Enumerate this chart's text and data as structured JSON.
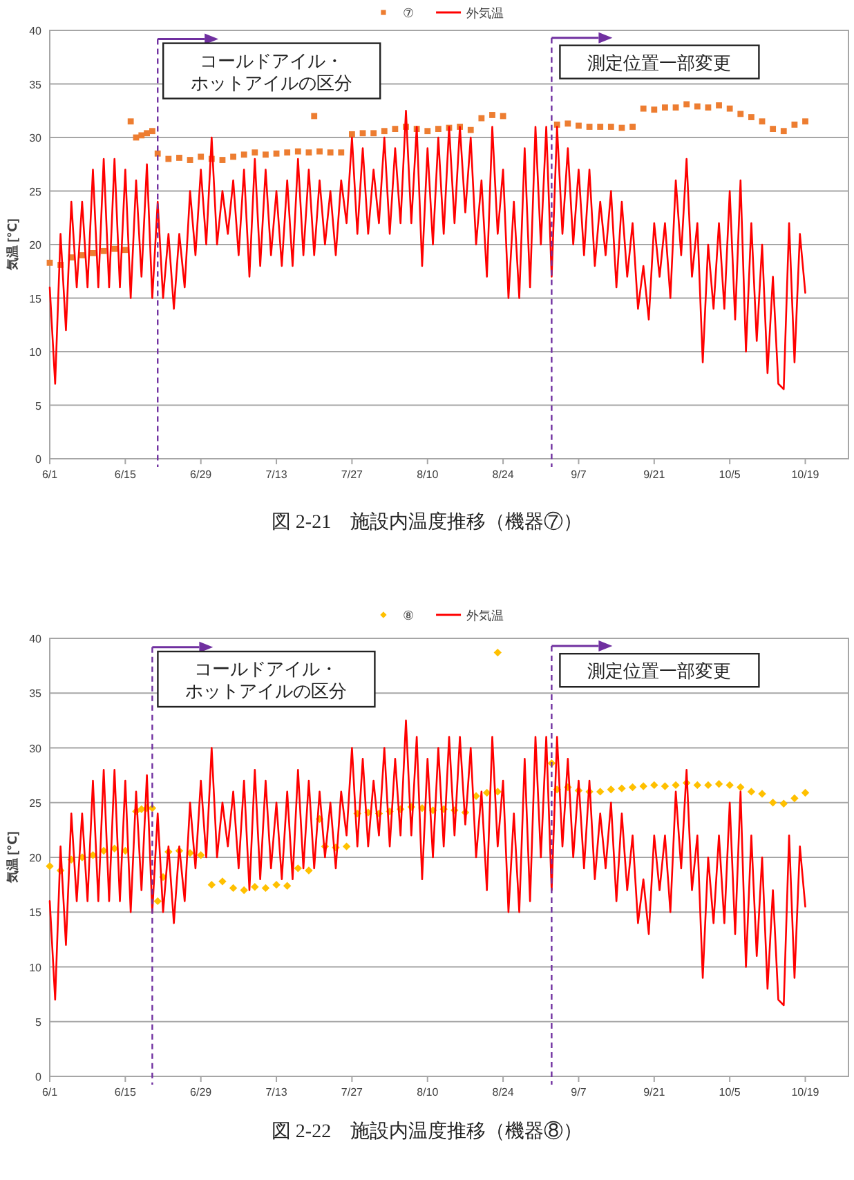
{
  "chart_data": [
    {
      "type": "line",
      "legend": "top",
      "grid": "y",
      "ylabel": "気温 [℃]",
      "xlim": [
        "--06-01",
        "--10-27"
      ],
      "ylim": [
        0,
        40
      ],
      "yticks": [
        0,
        5,
        10,
        15,
        20,
        25,
        30,
        35,
        40
      ],
      "xticks": [
        {
          "value": "--06-01",
          "label": "6/1"
        },
        {
          "value": "--06-15",
          "label": "6/15"
        },
        {
          "value": "--06-29",
          "label": "6/29"
        },
        {
          "value": "--07-13",
          "label": "7/13"
        },
        {
          "value": "--07-27",
          "label": "7/27"
        },
        {
          "value": "--08-10",
          "label": "8/10"
        },
        {
          "value": "--08-24",
          "label": "8/24"
        },
        {
          "value": "--09-07",
          "label": "9/7"
        },
        {
          "value": "--09-21",
          "label": "9/21"
        },
        {
          "value": "--10-05",
          "label": "10/5"
        },
        {
          "value": "--10-19",
          "label": "10/19"
        }
      ],
      "series": [
        {
          "name": "⑦",
          "type": "scatter",
          "marker": "square",
          "color": "#ed7d31",
          "x": [
            "--06-01",
            "--06-03",
            "--06-05",
            "--06-07",
            "--06-09",
            "--06-11",
            "--06-13",
            "--06-15",
            "--06-16",
            "--06-17",
            "--06-18",
            "--06-19",
            "--06-20",
            "--06-21",
            "--06-23",
            "--06-25",
            "--06-27",
            "--06-29",
            "--07-01",
            "--07-03",
            "--07-05",
            "--07-07",
            "--07-09",
            "--07-11",
            "--07-13",
            "--07-15",
            "--07-17",
            "--07-19",
            "--07-20",
            "--07-21",
            "--07-23",
            "--07-25",
            "--07-27",
            "--07-29",
            "--07-31",
            "--08-02",
            "--08-04",
            "--08-06",
            "--08-08",
            "--08-10",
            "--08-12",
            "--08-14",
            "--08-16",
            "--08-18",
            "--08-20",
            "--08-22",
            "--08-24",
            "--09-03",
            "--09-05",
            "--09-07",
            "--09-09",
            "--09-11",
            "--09-13",
            "--09-15",
            "--09-17",
            "--09-19",
            "--09-21",
            "--09-23",
            "--09-25",
            "--09-27",
            "--09-29",
            "--10-01",
            "--10-03",
            "--10-05",
            "--10-07",
            "--10-09",
            "--10-11",
            "--10-13",
            "--10-15",
            "--10-17",
            "--10-19"
          ],
          "values": [
            18.3,
            18.1,
            18.8,
            19.0,
            19.2,
            19.4,
            19.6,
            19.5,
            31.5,
            30.0,
            30.2,
            30.4,
            30.6,
            28.5,
            28.0,
            28.1,
            27.9,
            28.2,
            28.0,
            27.9,
            28.2,
            28.4,
            28.6,
            28.4,
            28.5,
            28.6,
            28.7,
            28.6,
            32.0,
            28.7,
            28.6,
            28.6,
            30.3,
            30.4,
            30.4,
            30.6,
            30.8,
            31.0,
            30.8,
            30.6,
            30.8,
            30.9,
            31.0,
            30.7,
            31.8,
            32.1,
            32.0,
            31.2,
            31.3,
            31.1,
            31.0,
            31.0,
            31.0,
            30.9,
            31.0,
            32.7,
            32.6,
            32.8,
            32.8,
            33.1,
            32.9,
            32.8,
            33.0,
            32.7,
            32.2,
            31.9,
            31.5,
            30.8,
            30.6,
            31.2,
            31.5
          ]
        },
        {
          "name": "外気温",
          "type": "line",
          "color": "#ff0000",
          "x": [
            "--06-01",
            "--06-02",
            "--06-03",
            "--06-04",
            "--06-05",
            "--06-06",
            "--06-07",
            "--06-08",
            "--06-09",
            "--06-10",
            "--06-11",
            "--06-12",
            "--06-13",
            "--06-14",
            "--06-15",
            "--06-16",
            "--06-17",
            "--06-18",
            "--06-19",
            "--06-20",
            "--06-21",
            "--06-22",
            "--06-23",
            "--06-24",
            "--06-25",
            "--06-26",
            "--06-27",
            "--06-28",
            "--06-29",
            "--06-30",
            "--07-01",
            "--07-02",
            "--07-03",
            "--07-04",
            "--07-05",
            "--07-06",
            "--07-07",
            "--07-08",
            "--07-09",
            "--07-10",
            "--07-11",
            "--07-12",
            "--07-13",
            "--07-14",
            "--07-15",
            "--07-16",
            "--07-17",
            "--07-18",
            "--07-19",
            "--07-20",
            "--07-21",
            "--07-22",
            "--07-23",
            "--07-24",
            "--07-25",
            "--07-26",
            "--07-27",
            "--07-28",
            "--07-29",
            "--07-30",
            "--07-31",
            "--08-01",
            "--08-02",
            "--08-03",
            "--08-04",
            "--08-05",
            "--08-06",
            "--08-07",
            "--08-08",
            "--08-09",
            "--08-10",
            "--08-11",
            "--08-12",
            "--08-13",
            "--08-14",
            "--08-15",
            "--08-16",
            "--08-17",
            "--08-18",
            "--08-19",
            "--08-20",
            "--08-21",
            "--08-22",
            "--08-23",
            "--08-24",
            "--08-25",
            "--08-26",
            "--08-27",
            "--08-28",
            "--08-29",
            "--08-30",
            "--08-31",
            "--09-01",
            "--09-02",
            "--09-03",
            "--09-04",
            "--09-05",
            "--09-06",
            "--09-07",
            "--09-08",
            "--09-09",
            "--09-10",
            "--09-11",
            "--09-12",
            "--09-13",
            "--09-14",
            "--09-15",
            "--09-16",
            "--09-17",
            "--09-18",
            "--09-19",
            "--09-20",
            "--09-21",
            "--09-22",
            "--09-23",
            "--09-24",
            "--09-25",
            "--09-26",
            "--09-27",
            "--09-28",
            "--09-29",
            "--09-30",
            "--10-01",
            "--10-02",
            "--10-03",
            "--10-04",
            "--10-05",
            "--10-06",
            "--10-07",
            "--10-08",
            "--10-09",
            "--10-10",
            "--10-11",
            "--10-12",
            "--10-13",
            "--10-14",
            "--10-15",
            "--10-16",
            "--10-17",
            "--10-18",
            "--10-19"
          ],
          "values": [
            16,
            7,
            21,
            12,
            24,
            16,
            24,
            16,
            27,
            16,
            28,
            16,
            28,
            16,
            27,
            15,
            26,
            17,
            27.5,
            15,
            24,
            15,
            21,
            14,
            21,
            16,
            25,
            19,
            27,
            20,
            30,
            20,
            25,
            21,
            26,
            19,
            27,
            17,
            28,
            18,
            27,
            19,
            25,
            18,
            26,
            18,
            28,
            19,
            27,
            19,
            26,
            20,
            25,
            19,
            26,
            22,
            30,
            21,
            29,
            21,
            27,
            22,
            30,
            21,
            29,
            22,
            32.5,
            22,
            31,
            18,
            29,
            20,
            30,
            21,
            31,
            22,
            31,
            23,
            30,
            20,
            26,
            17,
            31,
            21,
            27,
            15,
            24,
            15,
            29,
            16,
            31,
            20,
            31,
            17,
            31,
            21,
            29,
            20,
            27,
            19,
            27,
            18,
            24,
            19,
            25,
            16,
            24,
            17,
            22,
            14,
            18,
            13,
            22,
            17,
            22,
            15,
            26,
            19,
            28,
            17,
            22,
            9,
            20,
            14,
            22,
            14,
            25,
            13,
            26,
            10,
            22,
            11,
            20,
            8,
            17,
            7,
            6.5,
            22,
            9,
            21,
            15.5
          ]
        }
      ],
      "ref_lines": [
        {
          "axis": "x",
          "value": "--06-21",
          "label": "コールドアイル・ホットアイルの区分",
          "color": "#7030a0",
          "line_style": "dashed"
        },
        {
          "axis": "x",
          "value": "--09-02",
          "label": "測定位置一部変更",
          "color": "#7030a0",
          "line_style": "dashed"
        }
      ],
      "annotations": [
        "図 2-21　施設内温度推移（機器⑦）"
      ]
    },
    {
      "type": "line",
      "legend": "top",
      "grid": "y",
      "ylabel": "気温 [℃]",
      "xlim": [
        "--06-01",
        "--10-27"
      ],
      "ylim": [
        0,
        40
      ],
      "yticks": [
        0,
        5,
        10,
        15,
        20,
        25,
        30,
        35,
        40
      ],
      "xticks": [
        {
          "value": "--06-01",
          "label": "6/1"
        },
        {
          "value": "--06-15",
          "label": "6/15"
        },
        {
          "value": "--06-29",
          "label": "6/29"
        },
        {
          "value": "--07-13",
          "label": "7/13"
        },
        {
          "value": "--07-27",
          "label": "7/27"
        },
        {
          "value": "--08-10",
          "label": "8/10"
        },
        {
          "value": "--08-24",
          "label": "8/24"
        },
        {
          "value": "--09-07",
          "label": "9/7"
        },
        {
          "value": "--09-21",
          "label": "9/21"
        },
        {
          "value": "--10-05",
          "label": "10/5"
        },
        {
          "value": "--10-19",
          "label": "10/19"
        }
      ],
      "series": [
        {
          "name": "⑧",
          "type": "scatter",
          "marker": "diamond",
          "color": "#ffc000",
          "x": [
            "--06-01",
            "--06-03",
            "--06-05",
            "--06-07",
            "--06-09",
            "--06-11",
            "--06-13",
            "--06-15",
            "--06-17",
            "--06-18",
            "--06-19",
            "--06-20",
            "--06-21",
            "--06-22",
            "--06-23",
            "--06-25",
            "--06-27",
            "--06-29",
            "--07-01",
            "--07-03",
            "--07-05",
            "--07-07",
            "--07-09",
            "--07-11",
            "--07-13",
            "--07-15",
            "--07-17",
            "--07-19",
            "--07-21",
            "--07-22",
            "--07-24",
            "--07-26",
            "--07-28",
            "--07-30",
            "--08-01",
            "--08-03",
            "--08-05",
            "--08-07",
            "--08-09",
            "--08-11",
            "--08-13",
            "--08-15",
            "--08-17",
            "--08-19",
            "--08-21",
            "--08-23",
            "--08-23",
            "--09-02",
            "--09-03",
            "--09-05",
            "--09-07",
            "--09-09",
            "--09-11",
            "--09-13",
            "--09-15",
            "--09-17",
            "--09-19",
            "--09-21",
            "--09-23",
            "--09-25",
            "--09-27",
            "--09-29",
            "--10-01",
            "--10-03",
            "--10-05",
            "--10-07",
            "--10-09",
            "--10-11",
            "--10-13",
            "--10-15",
            "--10-17",
            "--10-19"
          ],
          "values": [
            19.2,
            18.8,
            19.8,
            20.0,
            20.2,
            20.6,
            20.8,
            20.6,
            24.2,
            24.4,
            24.5,
            24.5,
            16.0,
            18.2,
            20.5,
            20.6,
            20.4,
            20.2,
            17.5,
            17.8,
            17.2,
            17.0,
            17.3,
            17.2,
            17.5,
            17.4,
            19.0,
            18.8,
            23.5,
            21.0,
            20.9,
            21.0,
            24.0,
            24.1,
            24.0,
            24.2,
            24.4,
            24.6,
            24.5,
            24.3,
            24.4,
            24.3,
            24.1,
            25.6,
            25.9,
            26.0,
            38.7,
            28.6,
            26.2,
            26.4,
            26.1,
            26.0,
            26.0,
            26.2,
            26.3,
            26.4,
            26.5,
            26.6,
            26.5,
            26.6,
            26.8,
            26.6,
            26.6,
            26.7,
            26.6,
            26.4,
            26.0,
            25.8,
            25.0,
            24.9,
            25.4,
            25.9
          ]
        },
        {
          "name": "外気温",
          "type": "line",
          "color": "#ff0000",
          "x": [
            "--06-01",
            "--06-02",
            "--06-03",
            "--06-04",
            "--06-05",
            "--06-06",
            "--06-07",
            "--06-08",
            "--06-09",
            "--06-10",
            "--06-11",
            "--06-12",
            "--06-13",
            "--06-14",
            "--06-15",
            "--06-16",
            "--06-17",
            "--06-18",
            "--06-19",
            "--06-20",
            "--06-21",
            "--06-22",
            "--06-23",
            "--06-24",
            "--06-25",
            "--06-26",
            "--06-27",
            "--06-28",
            "--06-29",
            "--06-30",
            "--07-01",
            "--07-02",
            "--07-03",
            "--07-04",
            "--07-05",
            "--07-06",
            "--07-07",
            "--07-08",
            "--07-09",
            "--07-10",
            "--07-11",
            "--07-12",
            "--07-13",
            "--07-14",
            "--07-15",
            "--07-16",
            "--07-17",
            "--07-18",
            "--07-19",
            "--07-20",
            "--07-21",
            "--07-22",
            "--07-23",
            "--07-24",
            "--07-25",
            "--07-26",
            "--07-27",
            "--07-28",
            "--07-29",
            "--07-30",
            "--07-31",
            "--08-01",
            "--08-02",
            "--08-03",
            "--08-04",
            "--08-05",
            "--08-06",
            "--08-07",
            "--08-08",
            "--08-09",
            "--08-10",
            "--08-11",
            "--08-12",
            "--08-13",
            "--08-14",
            "--08-15",
            "--08-16",
            "--08-17",
            "--08-18",
            "--08-19",
            "--08-20",
            "--08-21",
            "--08-22",
            "--08-23",
            "--08-24",
            "--08-25",
            "--08-26",
            "--08-27",
            "--08-28",
            "--08-29",
            "--08-30",
            "--08-31",
            "--09-01",
            "--09-02",
            "--09-03",
            "--09-04",
            "--09-05",
            "--09-06",
            "--09-07",
            "--09-08",
            "--09-09",
            "--09-10",
            "--09-11",
            "--09-12",
            "--09-13",
            "--09-14",
            "--09-15",
            "--09-16",
            "--09-17",
            "--09-18",
            "--09-19",
            "--09-20",
            "--09-21",
            "--09-22",
            "--09-23",
            "--09-24",
            "--09-25",
            "--09-26",
            "--09-27",
            "--09-28",
            "--09-29",
            "--09-30",
            "--10-01",
            "--10-02",
            "--10-03",
            "--10-04",
            "--10-05",
            "--10-06",
            "--10-07",
            "--10-08",
            "--10-09",
            "--10-10",
            "--10-11",
            "--10-12",
            "--10-13",
            "--10-14",
            "--10-15",
            "--10-16",
            "--10-17",
            "--10-18",
            "--10-19"
          ],
          "values": [
            16,
            7,
            21,
            12,
            24,
            16,
            24,
            16,
            27,
            16,
            28,
            16,
            28,
            16,
            27,
            15,
            26,
            17,
            27.5,
            15,
            24,
            15,
            21,
            14,
            21,
            16,
            25,
            19,
            27,
            20,
            30,
            20,
            25,
            21,
            26,
            19,
            27,
            17,
            28,
            18,
            27,
            19,
            25,
            18,
            26,
            18,
            28,
            19,
            27,
            19,
            26,
            20,
            25,
            19,
            26,
            22,
            30,
            21,
            29,
            21,
            27,
            22,
            30,
            21,
            29,
            22,
            32.5,
            22,
            31,
            18,
            29,
            20,
            30,
            21,
            31,
            22,
            31,
            23,
            30,
            20,
            26,
            17,
            31,
            21,
            27,
            15,
            24,
            15,
            29,
            16,
            31,
            20,
            31,
            17,
            31,
            21,
            29,
            20,
            27,
            19,
            27,
            18,
            24,
            19,
            25,
            16,
            24,
            17,
            22,
            14,
            18,
            13,
            22,
            17,
            22,
            15,
            26,
            19,
            28,
            17,
            22,
            9,
            20,
            14,
            22,
            14,
            25,
            13,
            26,
            10,
            22,
            11,
            20,
            8,
            17,
            7,
            6.5,
            22,
            9,
            21,
            15.5
          ]
        }
      ],
      "ref_lines": [
        {
          "axis": "x",
          "value": "--06-20",
          "label": "コールドアイル・ホットアイルの区分",
          "color": "#7030a0",
          "line_style": "dashed"
        },
        {
          "axis": "x",
          "value": "--09-02",
          "label": "測定位置一部変更",
          "color": "#7030a0",
          "line_style": "dashed"
        }
      ],
      "annotations": [
        "図 2-22　施設内温度推移（機器⑧）"
      ]
    }
  ]
}
